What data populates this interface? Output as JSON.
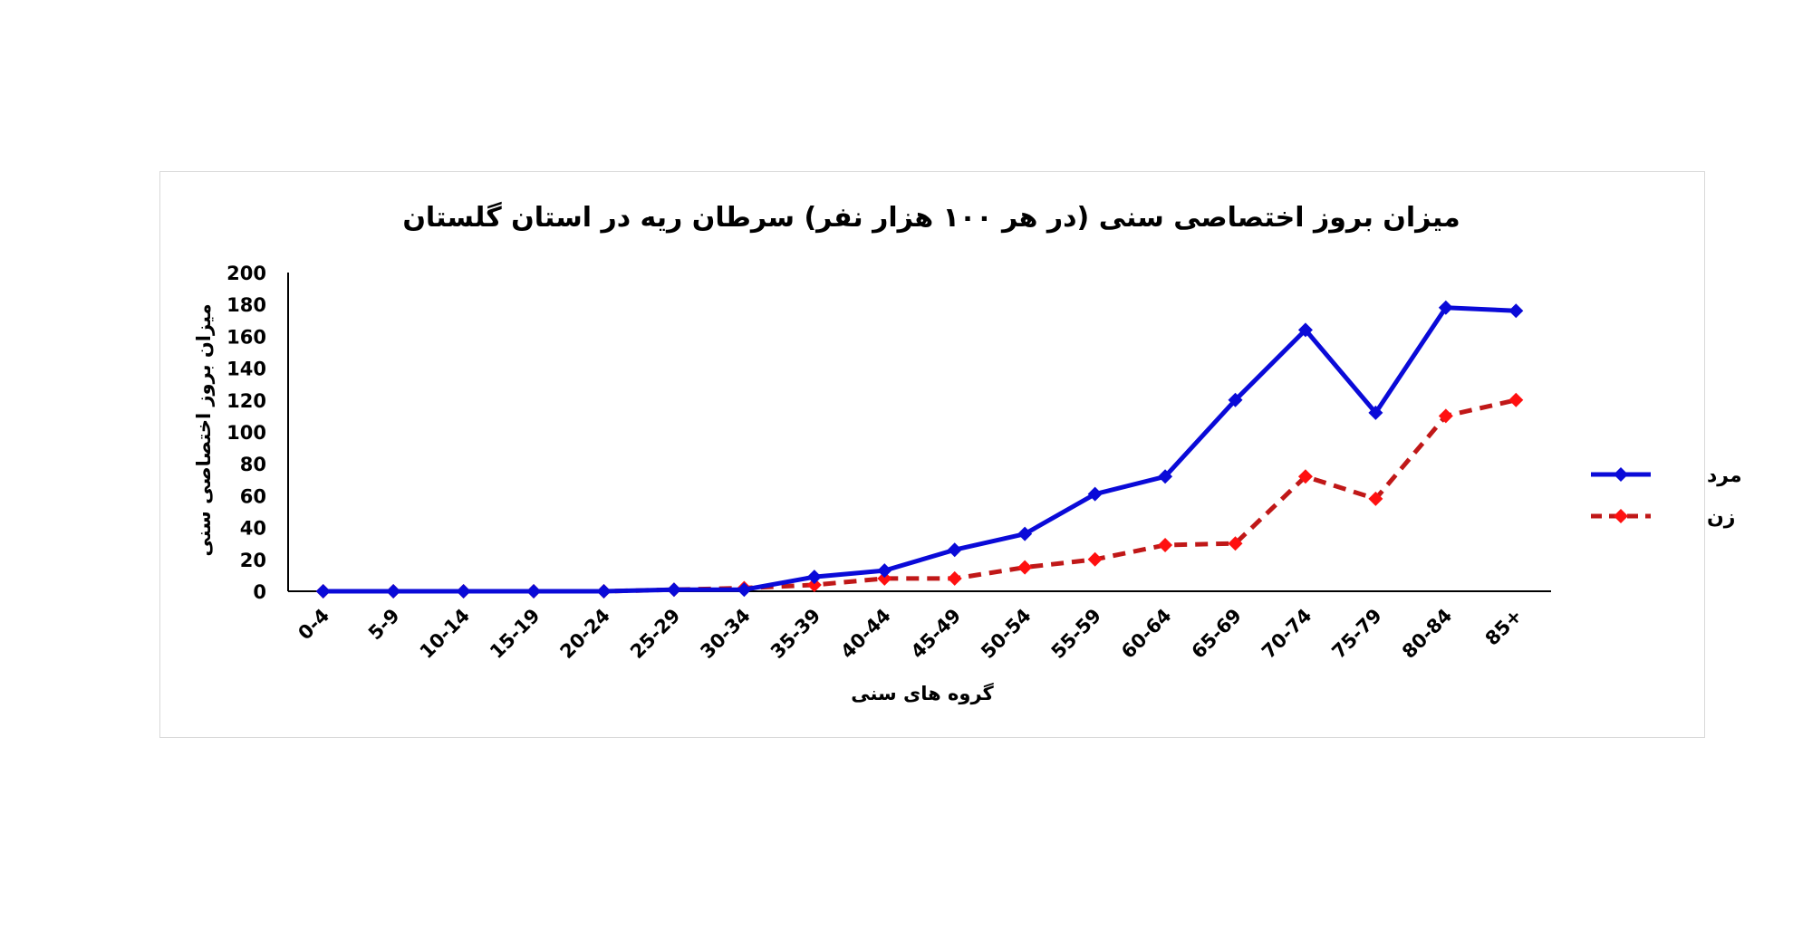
{
  "chart_data": {
    "type": "line",
    "title": "میزان بروز اختصاصی سنی (در هر ۱۰۰ هزار نفر) سرطان ریه در استان گلستان",
    "xlabel": "گروه های سنی",
    "ylabel": "میزان بروز اختصاصی سنی",
    "ylim": [
      0,
      200
    ],
    "yticks": [
      0,
      20,
      40,
      60,
      80,
      100,
      120,
      140,
      160,
      180,
      200
    ],
    "grid": false,
    "legend_position": "right",
    "categories": [
      "0-4",
      "5-9",
      "10-14",
      "15-19",
      "20-24",
      "25-29",
      "30-34",
      "35-39",
      "40-44",
      "45-49",
      "50-54",
      "55-59",
      "60-64",
      "65-69",
      "70-74",
      "75-79",
      "80-84",
      "85+"
    ],
    "series": [
      {
        "name": "مرد",
        "color": "#0a0ad8",
        "line_style": "solid",
        "marker": "diamond",
        "values": [
          0,
          0,
          0,
          0,
          0,
          1,
          1,
          9,
          13,
          26,
          36,
          61,
          72,
          120,
          164,
          112,
          178,
          176
        ]
      },
      {
        "name": "زن",
        "color": "#c01818",
        "marker_color": "#ff1010",
        "line_style": "dashed",
        "marker": "diamond",
        "values": [
          0,
          0,
          0,
          0,
          0,
          1,
          2,
          4,
          8,
          8,
          15,
          20,
          29,
          30,
          72,
          58,
          110,
          120
        ]
      }
    ]
  }
}
